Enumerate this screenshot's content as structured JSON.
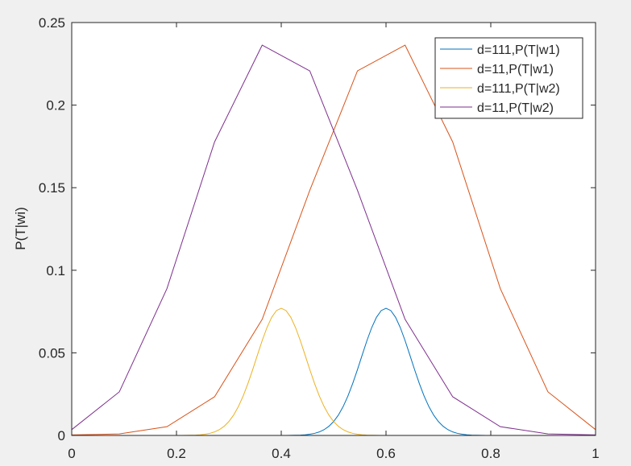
{
  "chart_data": {
    "type": "line",
    "xlabel": "",
    "ylabel": "P(T|wi)",
    "xlim": [
      0,
      1
    ],
    "ylim": [
      0,
      0.25
    ],
    "xticks": [
      0,
      0.2,
      0.4,
      0.6,
      0.8,
      1
    ],
    "xtick_labels": [
      "0",
      "0.2",
      "0.4",
      "0.6",
      "0.8",
      "1"
    ],
    "yticks": [
      0,
      0.05,
      0.1,
      0.15,
      0.2,
      0.25
    ],
    "ytick_labels": [
      "0",
      "0.05",
      "0.1",
      "0.15",
      "0.2",
      "0.25"
    ],
    "grid": false,
    "legend_position": "top-right",
    "series": [
      {
        "name": "d=111,P(T|w1)",
        "color": "#0072BD",
        "kind": "gaussian",
        "mean": 0.6,
        "sd": 0.0475,
        "peak": 0.077,
        "x_range": [
          0,
          1
        ],
        "samples": 111
      },
      {
        "name": "d=11,P(T|w1)",
        "color": "#D95319",
        "x": [
          0,
          0.0909,
          0.1818,
          0.2727,
          0.3636,
          0.4545,
          0.5455,
          0.6364,
          0.7273,
          0.8182,
          0.9091,
          1.0
        ],
        "y": [
          0.0003,
          0.0009,
          0.0053,
          0.0234,
          0.0703,
          0.1484,
          0.2207,
          0.2363,
          0.1777,
          0.0889,
          0.0264,
          0.0035
        ]
      },
      {
        "name": "d=111,P(T|w2)",
        "color": "#EDB120",
        "kind": "gaussian",
        "mean": 0.4,
        "sd": 0.0475,
        "peak": 0.077,
        "x_range": [
          0,
          1
        ],
        "samples": 111
      },
      {
        "name": "d=11,P(T|w2)",
        "color": "#7E2F8E",
        "x": [
          0,
          0.0909,
          0.1818,
          0.2727,
          0.3636,
          0.4545,
          0.5455,
          0.6364,
          0.7273,
          0.8182,
          0.9091,
          1.0
        ],
        "y": [
          0.0035,
          0.0264,
          0.0889,
          0.1777,
          0.2363,
          0.2207,
          0.1484,
          0.0703,
          0.0234,
          0.0053,
          0.0009,
          0.0003
        ]
      }
    ]
  }
}
